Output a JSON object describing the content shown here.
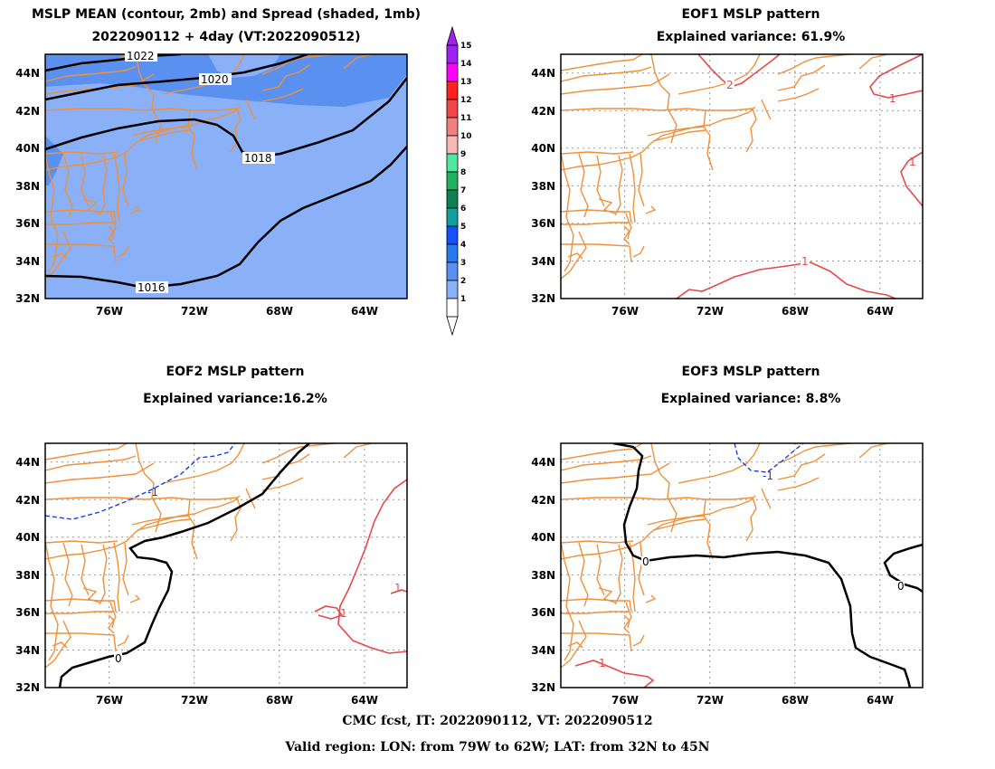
{
  "panels": [
    {
      "id": "mean",
      "title": "MSLP MEAN (contour, 2mb) and Spread (shaded, 1mb)",
      "subtitle": "2022090112 + 4day (VT:2022090512)",
      "contour_labels": [
        "1022",
        "1020",
        "1018",
        "1016"
      ]
    },
    {
      "id": "eof1",
      "title": "EOF1 MSLP pattern",
      "subtitle": "Explained variance: 61.9%",
      "contour_labels": [
        "2",
        "1",
        "1",
        "1"
      ]
    },
    {
      "id": "eof2",
      "title": "EOF2 MSLP pattern",
      "subtitle": "Explained variance:16.2%",
      "contour_labels": [
        "-1",
        "0",
        "1",
        "1"
      ]
    },
    {
      "id": "eof3",
      "title": "EOF3 MSLP pattern",
      "subtitle": "Explained variance: 8.8%",
      "contour_labels": [
        "-1",
        "0",
        "0",
        "1"
      ]
    }
  ],
  "axes": {
    "lat_ticks": [
      "44N",
      "42N",
      "40N",
      "38N",
      "36N",
      "34N",
      "32N"
    ],
    "lon_ticks": [
      "76W",
      "72W",
      "68W",
      "64W"
    ]
  },
  "colorbar": {
    "labels": [
      "15",
      "14",
      "13",
      "12",
      "11",
      "10",
      "9",
      "8",
      "7",
      "6",
      "5",
      "4",
      "3",
      "2",
      "1"
    ],
    "colors": [
      "#a020f0",
      "#ff00ff",
      "#ff2020",
      "#f04848",
      "#f08080",
      "#f8b8b8",
      "#50e8a0",
      "#20b060",
      "#108050",
      "#10a0a0",
      "#1450ff",
      "#2878f0",
      "#5a90f0",
      "#8ab0f8",
      "#ffffff"
    ]
  },
  "footer": {
    "line1": "CMC fcst, IT: 2022090112, VT: 2022090512",
    "line2": "Valid region: LON: from 79W to 62W; LAT: from 32N to 45N"
  }
}
